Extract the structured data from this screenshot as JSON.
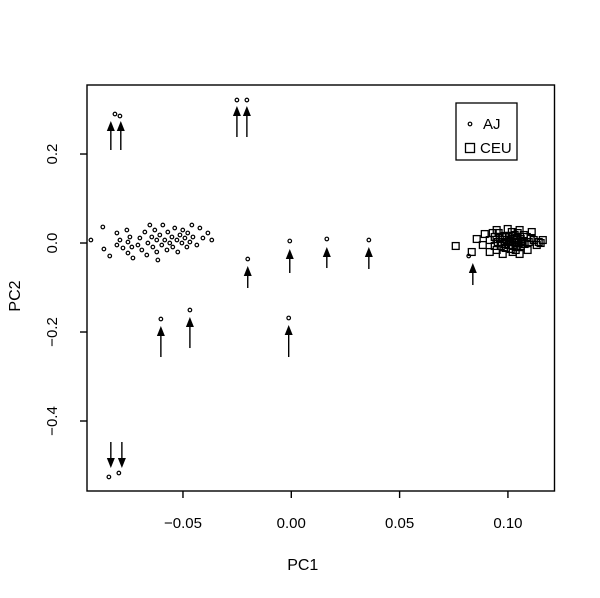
{
  "chart_data": {
    "type": "scatter",
    "title": "",
    "xlabel": "PC1",
    "ylabel": "PC2",
    "xlim": [
      -0.0943,
      0.1215
    ],
    "ylim": [
      -0.5573,
      0.3551
    ],
    "grid": false,
    "legend": {
      "position": "top-right",
      "entries": [
        {
          "label": "AJ",
          "marker": "circle"
        },
        {
          "label": "CEU",
          "marker": "square"
        }
      ]
    },
    "x_ticks": [
      {
        "v": -0.05,
        "label": "−0.05"
      },
      {
        "v": 0.0,
        "label": "0.00"
      },
      {
        "v": 0.05,
        "label": "0.05"
      },
      {
        "v": 0.1,
        "label": "0.10"
      }
    ],
    "y_ticks": [
      {
        "v": 0.2,
        "label": "0.2"
      },
      {
        "v": 0.0,
        "label": "0.0"
      },
      {
        "v": -0.2,
        "label": "−0.2"
      },
      {
        "v": -0.4,
        "label": "−0.4"
      }
    ],
    "colors": {
      "foreground": "#000000",
      "background": "#ffffff"
    },
    "series": [
      {
        "name": "AJ",
        "marker": "circle",
        "points": [
          [
            -0.087,
            0.036
          ],
          [
            -0.0925,
            0.0067
          ],
          [
            -0.0865,
            -0.0135
          ],
          [
            -0.0838,
            -0.0292
          ],
          [
            -0.0805,
            0.0225
          ],
          [
            -0.0791,
            0.0067
          ],
          [
            -0.0805,
            -0.0045
          ],
          [
            -0.0777,
            -0.0112
          ],
          [
            -0.0759,
            0.0292
          ],
          [
            -0.0745,
            0.0135
          ],
          [
            -0.0754,
            0.0022
          ],
          [
            -0.0736,
            -0.009
          ],
          [
            -0.0754,
            -0.0225
          ],
          [
            -0.0731,
            -0.0337
          ],
          [
            -0.0708,
            -0.0045
          ],
          [
            -0.0699,
            0.0112
          ],
          [
            -0.069,
            -0.0157
          ],
          [
            -0.0676,
            0.0247
          ],
          [
            -0.0667,
            -0.027
          ],
          [
            -0.0662,
            0.0
          ],
          [
            -0.0653,
            0.0404
          ],
          [
            -0.0644,
            0.0135
          ],
          [
            -0.0639,
            -0.009
          ],
          [
            -0.063,
            0.0292
          ],
          [
            -0.0621,
            0.0067
          ],
          [
            -0.0621,
            -0.0202
          ],
          [
            -0.0616,
            -0.0382
          ],
          [
            -0.0607,
            0.018
          ],
          [
            -0.0598,
            -0.0045
          ],
          [
            -0.0593,
            0.0404
          ],
          [
            -0.0584,
            0.0067
          ],
          [
            -0.0574,
            -0.0157
          ],
          [
            -0.057,
            0.0247
          ],
          [
            -0.0561,
            0.0
          ],
          [
            -0.0551,
            0.0135
          ],
          [
            -0.0547,
            -0.009
          ],
          [
            -0.0538,
            0.0337
          ],
          [
            -0.0528,
            0.0067
          ],
          [
            -0.0524,
            -0.0202
          ],
          [
            -0.0514,
            0.018
          ],
          [
            -0.0505,
            0.0
          ],
          [
            -0.0501,
            0.0292
          ],
          [
            -0.0491,
            0.0112
          ],
          [
            -0.0482,
            -0.009
          ],
          [
            -0.0478,
            0.0225
          ],
          [
            -0.0468,
            0.0022
          ],
          [
            -0.0459,
            0.0404
          ],
          [
            -0.0454,
            0.0135
          ],
          [
            -0.0436,
            -0.0045
          ],
          [
            -0.0422,
            0.0337
          ],
          [
            -0.0408,
            0.0112
          ],
          [
            -0.0385,
            0.0225
          ],
          [
            -0.0367,
            0.0067
          ],
          [
            -0.0814,
            0.2899
          ],
          [
            -0.0791,
            0.2854
          ],
          [
            -0.0251,
            0.3213
          ],
          [
            -0.0205,
            0.3213
          ],
          [
            -0.0842,
            -0.5258
          ],
          [
            -0.0796,
            -0.5169
          ],
          [
            -0.0602,
            -0.1708
          ],
          [
            -0.0468,
            -0.1506
          ],
          [
            -0.0012,
            -0.1685
          ],
          [
            -0.0201,
            -0.036
          ],
          [
            -0.0007,
            0.0045
          ],
          [
            0.0164,
            0.009
          ],
          [
            0.0358,
            0.0067
          ],
          [
            0.0819,
            -0.0292
          ]
        ]
      },
      {
        "name": "CEU",
        "marker": "square",
        "points": [
          [
            0.0759,
            -0.0067
          ],
          [
            0.0833,
            -0.0202
          ],
          [
            0.0856,
            0.009
          ],
          [
            0.0884,
            -0.0045
          ],
          [
            0.0893,
            0.0202
          ],
          [
            0.0916,
            0.0067
          ],
          [
            0.0916,
            -0.0202
          ],
          [
            0.093,
            0.0225
          ],
          [
            0.0939,
            0.0135
          ],
          [
            0.0939,
            -0.0067
          ],
          [
            0.0948,
            0.0292
          ],
          [
            0.0948,
            -0.0157
          ],
          [
            0.0953,
            0.0022
          ],
          [
            0.0957,
            0.0225
          ],
          [
            0.0962,
            0.0112
          ],
          [
            0.0967,
            -0.0067
          ],
          [
            0.0971,
            0.0022
          ],
          [
            0.0976,
            0.0135
          ],
          [
            0.0976,
            -0.0247
          ],
          [
            0.0985,
            0.0157
          ],
          [
            0.0985,
            -0.0022
          ],
          [
            0.099,
            -0.0112
          ],
          [
            0.0994,
            0.0067
          ],
          [
            0.0999,
            0.0315
          ],
          [
            0.1004,
            0.0135
          ],
          [
            0.1004,
            -0.0045
          ],
          [
            0.1008,
            0.0022
          ],
          [
            0.1013,
            0.0045
          ],
          [
            0.1013,
            -0.0135
          ],
          [
            0.1018,
            0.0247
          ],
          [
            0.1022,
            0.0157
          ],
          [
            0.1022,
            -0.0067
          ],
          [
            0.1022,
            -0.0202
          ],
          [
            0.1031,
            0.018
          ],
          [
            0.1031,
            0.0022
          ],
          [
            0.1036,
            -0.0157
          ],
          [
            0.1041,
            0.0112
          ],
          [
            0.1041,
            -0.009
          ],
          [
            0.1045,
            0.0225
          ],
          [
            0.105,
            0.0
          ],
          [
            0.1054,
            0.0292
          ],
          [
            0.1054,
            -0.0247
          ],
          [
            0.1059,
            0.009
          ],
          [
            0.1059,
            -0.0067
          ],
          [
            0.1064,
            0.0022
          ],
          [
            0.1068,
            0.0045
          ],
          [
            0.1073,
            0.018
          ],
          [
            0.1077,
            -0.0022
          ],
          [
            0.1087,
            0.0135
          ],
          [
            0.1091,
            -0.0157
          ],
          [
            0.1096,
            0.0022
          ],
          [
            0.1105,
            0.0112
          ],
          [
            0.111,
            0.0247
          ],
          [
            0.1119,
            0.0067
          ],
          [
            0.1133,
            -0.0045
          ],
          [
            0.1142,
            0.0022
          ],
          [
            0.1151,
            0.0
          ],
          [
            0.1161,
            0.0067
          ]
        ]
      }
    ],
    "arrows": [
      {
        "x": -0.0833,
        "y_tail": 0.209,
        "y_tip": 0.2742
      },
      {
        "x": -0.0787,
        "y_tail": 0.209,
        "y_tip": 0.2742
      },
      {
        "x": -0.0251,
        "y_tail": 0.2382,
        "y_tip": 0.3079
      },
      {
        "x": -0.0205,
        "y_tail": 0.2382,
        "y_tip": 0.3079
      },
      {
        "x": -0.0833,
        "y_tail": -0.4472,
        "y_tip": -0.5056
      },
      {
        "x": -0.0782,
        "y_tail": -0.4472,
        "y_tip": -0.5056
      },
      {
        "x": -0.0602,
        "y_tail": -0.2562,
        "y_tip": -0.1865
      },
      {
        "x": -0.0468,
        "y_tail": -0.236,
        "y_tip": -0.1663
      },
      {
        "x": -0.0012,
        "y_tail": -0.2562,
        "y_tip": -0.1843
      },
      {
        "x": -0.0201,
        "y_tail": -0.1011,
        "y_tip": -0.0517
      },
      {
        "x": -0.0007,
        "y_tail": -0.0674,
        "y_tip": -0.0135
      },
      {
        "x": 0.0164,
        "y_tail": -0.0562,
        "y_tip": -0.009
      },
      {
        "x": 0.0358,
        "y_tail": -0.0584,
        "y_tip": -0.009
      },
      {
        "x": 0.0838,
        "y_tail": -0.0944,
        "y_tip": -0.0449
      }
    ]
  }
}
